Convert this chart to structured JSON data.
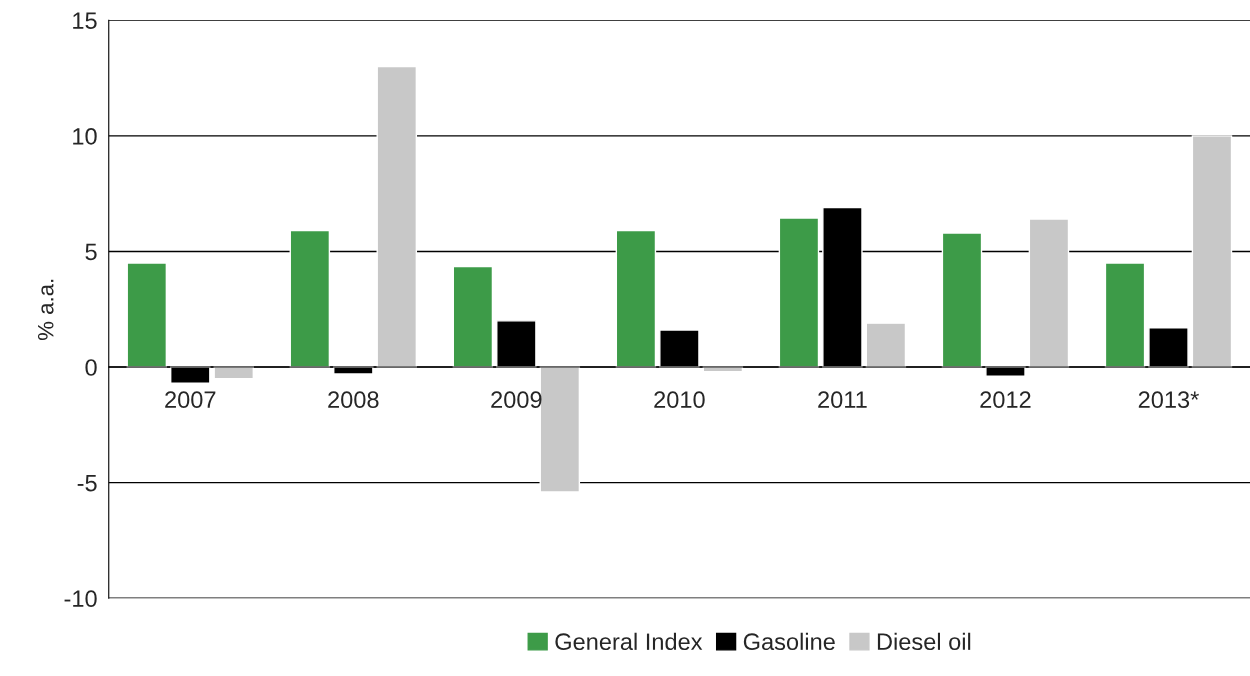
{
  "chart_data": {
    "type": "bar",
    "ylabel": "% a.a.",
    "categories": [
      "2007",
      "2008",
      "2009",
      "2010",
      "2011",
      "2012",
      "2013*"
    ],
    "series": [
      {
        "name": "General Index",
        "color": "#3d9b48",
        "values": [
          4.5,
          5.9,
          4.35,
          5.9,
          6.45,
          5.8,
          4.5
        ]
      },
      {
        "name": "Gasoline",
        "color": "#000000",
        "values": [
          -0.7,
          -0.3,
          2.0,
          1.6,
          6.9,
          -0.4,
          1.7
        ]
      },
      {
        "name": "Diesel oil",
        "color": "#c8c8c8",
        "values": [
          -0.5,
          13.0,
          -5.4,
          -0.2,
          1.9,
          6.4,
          10.0
        ]
      }
    ],
    "ylim": [
      -10,
      15
    ],
    "yticks": [
      -10,
      -5,
      0,
      5,
      10,
      15
    ],
    "grid": "y",
    "legend": "bottom"
  }
}
